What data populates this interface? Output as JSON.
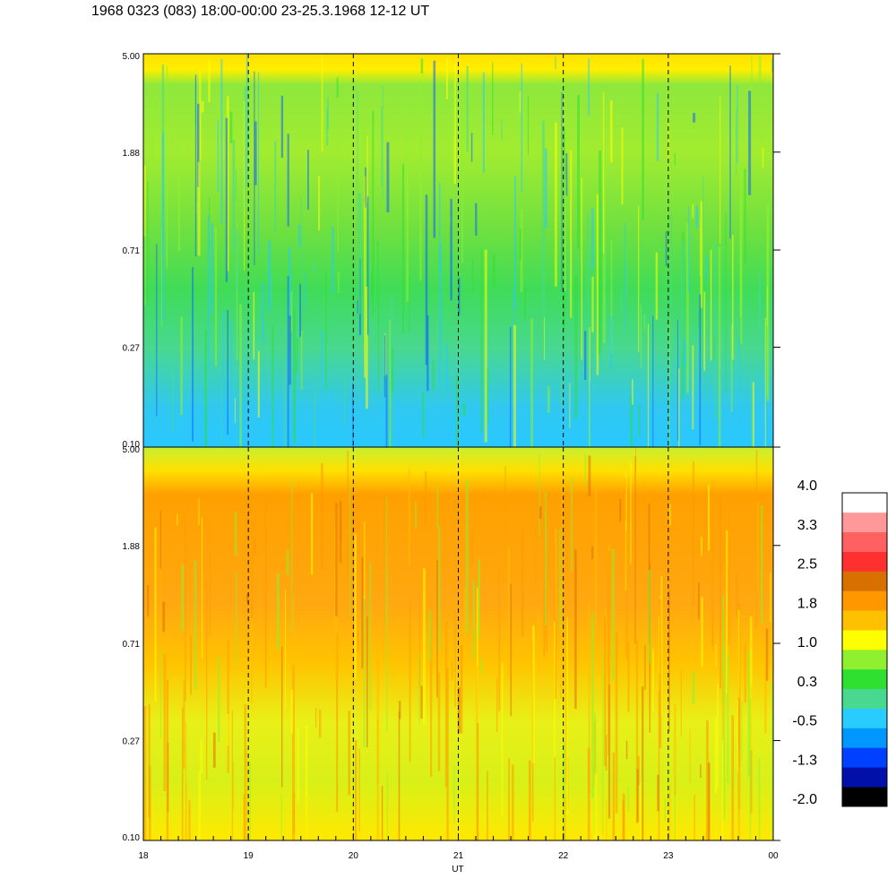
{
  "title": "1968 0323 (083) 18:00-00:00 23-25.3.1968  12-12 UT",
  "chart_data": [
    {
      "type": "heatmap",
      "panel": "top",
      "x": {
        "ticks": [
          "18",
          "19",
          "20",
          "21",
          "22",
          "23",
          "00"
        ],
        "range_hours": [
          18,
          24
        ]
      },
      "y": {
        "ticks": [
          "5.00",
          "1.88",
          "0.71",
          "0.27",
          "0.10"
        ],
        "scale": "log",
        "range": [
          0.1,
          5.0
        ]
      },
      "vertical_markers_hours": [
        19,
        20,
        21,
        22,
        23
      ],
      "dominant_levels": [
        "-0.5",
        "0.3",
        "1.0"
      ]
    },
    {
      "type": "heatmap",
      "panel": "bottom",
      "x": {
        "ticks": [
          "18",
          "19",
          "20",
          "21",
          "22",
          "23",
          "00"
        ],
        "range_hours": [
          18,
          24
        ]
      },
      "y": {
        "ticks": [
          "5.00",
          "1.88",
          "0.71",
          "0.27",
          "0.10"
        ],
        "scale": "log",
        "range": [
          0.1,
          5.0
        ]
      },
      "vertical_markers_hours": [
        19,
        20,
        21,
        22,
        23
      ],
      "dominant_levels": [
        "1.0",
        "1.8",
        "2.5"
      ]
    }
  ],
  "xlabel": "UT",
  "colorbar": {
    "labels": [
      "4.0",
      "3.3",
      "2.5",
      "1.8",
      "1.0",
      "0.3",
      "-0.5",
      "-1.3",
      "-2.0"
    ],
    "colors": [
      "#000000",
      "#0010a8",
      "#0040ff",
      "#0098ff",
      "#28ccff",
      "#48d890",
      "#30e030",
      "#90f030",
      "#ffff00",
      "#ffc000",
      "#ff9800",
      "#d87000",
      "#ff3030",
      "#ff6060",
      "#ff9898",
      "#ffffff"
    ]
  }
}
